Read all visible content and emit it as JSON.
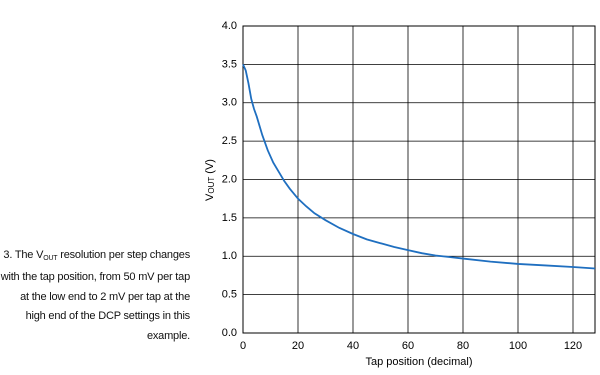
{
  "chart_data": {
    "type": "line",
    "xlabel": "Tap position (decimal)",
    "ylabel": {
      "main": "V",
      "sub": "OUT",
      "unit": "(V)"
    },
    "x": [
      0,
      1,
      2,
      3,
      4,
      5,
      7,
      9,
      11,
      13,
      15,
      17,
      20,
      23,
      26,
      30,
      35,
      40,
      45,
      50,
      55,
      60,
      65,
      70,
      75,
      80,
      90,
      100,
      110,
      120,
      128
    ],
    "series": [
      {
        "color": "#1f6fc0",
        "values": [
          3.5,
          3.42,
          3.25,
          3.05,
          2.92,
          2.82,
          2.58,
          2.38,
          2.22,
          2.1,
          1.98,
          1.88,
          1.75,
          1.65,
          1.56,
          1.47,
          1.37,
          1.29,
          1.22,
          1.17,
          1.12,
          1.08,
          1.04,
          1.01,
          0.99,
          0.97,
          0.93,
          0.9,
          0.88,
          0.86,
          0.84
        ]
      }
    ],
    "xlim": [
      0,
      128
    ],
    "ylim": [
      0,
      4
    ],
    "xticks": [
      0,
      20,
      40,
      60,
      80,
      100,
      120
    ],
    "yticks": [
      {
        "value": 0,
        "label": "0.0"
      },
      0.5,
      {
        "value": 1,
        "label": "1.0"
      },
      1.5,
      {
        "value": 2,
        "label": "2.0"
      },
      2.5,
      {
        "value": 3,
        "label": "3.0"
      },
      3.5,
      {
        "value": 4,
        "label": "4.0"
      }
    ],
    "grid": true
  },
  "caption": {
    "start": "3. The V",
    "sub": "OUT",
    "end": " resolution per step changes with the tap position, from 50 mV per tap at the low end to 2 mV per tap at the high end of the DCP settings in this example."
  }
}
